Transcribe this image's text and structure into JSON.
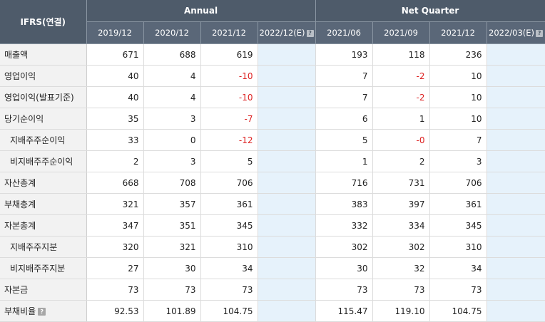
{
  "header": {
    "corner": "IFRS(연결)",
    "annual": "Annual",
    "quarter": "Net Quarter",
    "annual_cols": [
      "2019/12",
      "2020/12",
      "2021/12",
      "2022/12(E)"
    ],
    "quarter_cols": [
      "2021/06",
      "2021/09",
      "2021/12",
      "2022/03(E)"
    ],
    "help_glyph": "?"
  },
  "rows": [
    {
      "label": "매출액",
      "indent": false,
      "annual": [
        "671",
        "688",
        "619",
        ""
      ],
      "quarter": [
        "193",
        "118",
        "236",
        ""
      ]
    },
    {
      "label": "영업이익",
      "indent": false,
      "annual": [
        "40",
        "4",
        "-10",
        ""
      ],
      "quarter": [
        "7",
        "-2",
        "10",
        ""
      ]
    },
    {
      "label": "영업이익(발표기준)",
      "indent": false,
      "annual": [
        "40",
        "4",
        "-10",
        ""
      ],
      "quarter": [
        "7",
        "-2",
        "10",
        ""
      ]
    },
    {
      "label": "당기순이익",
      "indent": false,
      "annual": [
        "35",
        "3",
        "-7",
        ""
      ],
      "quarter": [
        "6",
        "1",
        "10",
        ""
      ]
    },
    {
      "label": "지배주주순이익",
      "indent": true,
      "annual": [
        "33",
        "0",
        "-12",
        ""
      ],
      "quarter": [
        "5",
        "-0",
        "7",
        ""
      ]
    },
    {
      "label": "비지배주주순이익",
      "indent": true,
      "annual": [
        "2",
        "3",
        "5",
        ""
      ],
      "quarter": [
        "1",
        "2",
        "3",
        ""
      ]
    },
    {
      "label": "자산총계",
      "indent": false,
      "annual": [
        "668",
        "708",
        "706",
        ""
      ],
      "quarter": [
        "716",
        "731",
        "706",
        ""
      ]
    },
    {
      "label": "부채총계",
      "indent": false,
      "annual": [
        "321",
        "357",
        "361",
        ""
      ],
      "quarter": [
        "383",
        "397",
        "361",
        ""
      ]
    },
    {
      "label": "자본총계",
      "indent": false,
      "annual": [
        "347",
        "351",
        "345",
        ""
      ],
      "quarter": [
        "332",
        "334",
        "345",
        ""
      ]
    },
    {
      "label": "지배주주지분",
      "indent": true,
      "annual": [
        "320",
        "321",
        "310",
        ""
      ],
      "quarter": [
        "302",
        "302",
        "310",
        ""
      ]
    },
    {
      "label": "비지배주주지분",
      "indent": true,
      "annual": [
        "27",
        "30",
        "34",
        ""
      ],
      "quarter": [
        "30",
        "32",
        "34",
        ""
      ]
    },
    {
      "label": "자본금",
      "indent": false,
      "annual": [
        "73",
        "73",
        "73",
        ""
      ],
      "quarter": [
        "73",
        "73",
        "73",
        ""
      ]
    },
    {
      "label": "부채비율",
      "indent": false,
      "help": true,
      "annual": [
        "92.53",
        "101.89",
        "104.75",
        ""
      ],
      "quarter": [
        "115.47",
        "119.10",
        "104.75",
        ""
      ]
    }
  ]
}
